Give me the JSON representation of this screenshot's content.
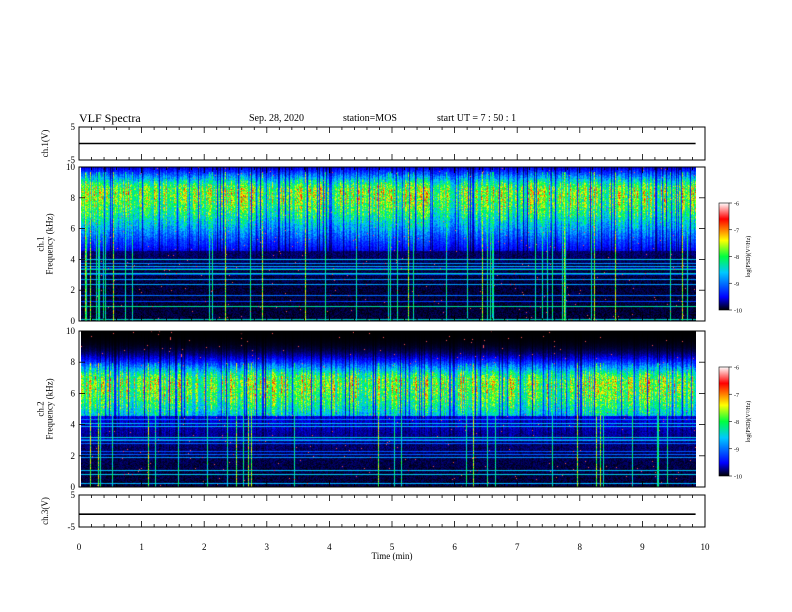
{
  "header": {
    "title": "VLF Spectra",
    "date": "Sep. 28, 2020",
    "station": "station=MOS",
    "start": "start  UT =   7 : 50 : 1"
  },
  "chart_data": [
    {
      "type": "line",
      "panel": "ch1-voltage",
      "ylabel": "ch.1(V)",
      "ylim": [
        -5,
        5
      ],
      "yticks": [
        "5",
        "-5"
      ],
      "series": [
        {
          "x": [
            0,
            9.85
          ],
          "y": [
            0,
            0
          ]
        }
      ]
    },
    {
      "type": "heatmap",
      "panel": "ch1-spectrogram",
      "ylabel": "ch.1\nFrequency (kHz)",
      "ylim": [
        0,
        10
      ],
      "yticks": [
        "0",
        "2",
        "4",
        "6",
        "8",
        "10"
      ],
      "xlim": [
        0,
        10
      ],
      "data_extent_min": 9.85,
      "band_center_khz": 8.4,
      "band_spread_khz": 3.2,
      "colorbar": {
        "label": "log(PSD)(V²/Hz)",
        "range": [
          -10,
          -6
        ],
        "ticks": [
          "-6",
          "-7",
          "-8",
          "-9",
          "-10"
        ]
      }
    },
    {
      "type": "heatmap",
      "panel": "ch2-spectrogram",
      "ylabel": "ch.2\nFrequency (kHz)",
      "ylim": [
        0,
        10
      ],
      "yticks": [
        "0",
        "2",
        "4",
        "6",
        "8",
        "10"
      ],
      "xlim": [
        0,
        10
      ],
      "data_extent_min": 9.85,
      "band_center_khz": 6.7,
      "band_spread_khz": 3.3,
      "colorbar": {
        "label": "log(PSD)(V²/Hz)",
        "range": [
          -10,
          -6
        ],
        "ticks": [
          "-6",
          "-7",
          "-8",
          "-9",
          "-10"
        ]
      }
    },
    {
      "type": "line",
      "panel": "ch3-voltage",
      "ylabel": "ch.3(V)",
      "ylim": [
        -5,
        5
      ],
      "yticks": [
        "5",
        "-5"
      ],
      "series": [
        {
          "x": [
            0,
            9.85
          ],
          "y": [
            -1,
            -1
          ]
        }
      ]
    }
  ],
  "xaxis": {
    "label": "Time (min)",
    "ticks": [
      "0",
      "1",
      "2",
      "3",
      "4",
      "5",
      "6",
      "7",
      "8",
      "9",
      "10"
    ],
    "range": [
      0,
      10
    ]
  },
  "colors": {
    "colormap": [
      "#000000",
      "#0000ff",
      "#00c8ff",
      "#00ff40",
      "#ffff00",
      "#ff0000",
      "#ffffff"
    ]
  }
}
